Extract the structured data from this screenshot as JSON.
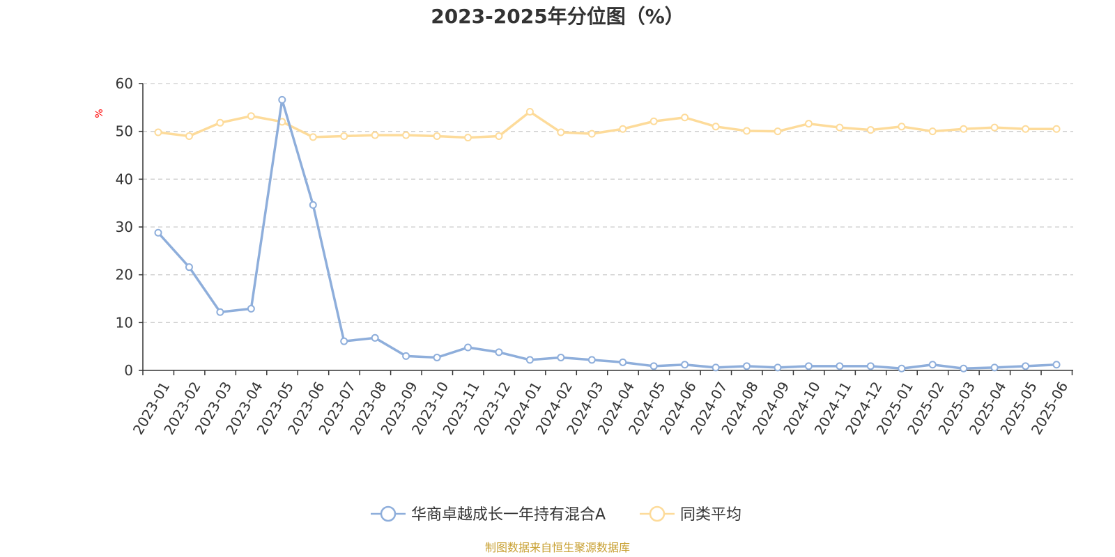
{
  "chart_data": {
    "type": "line",
    "title": "2023-2025年分位图（%）",
    "ylabel": "%",
    "xlabel": "",
    "ylim": [
      0,
      60
    ],
    "yticks": [
      0,
      10,
      20,
      30,
      40,
      50,
      60
    ],
    "grid": true,
    "legend_position": "bottom-center",
    "categories": [
      "2023-01",
      "2023-02",
      "2023-03",
      "2023-04",
      "2023-05",
      "2023-06",
      "2023-07",
      "2023-08",
      "2023-09",
      "2023-10",
      "2023-11",
      "2023-12",
      "2024-01",
      "2024-02",
      "2024-03",
      "2024-04",
      "2024-05",
      "2024-06",
      "2024-07",
      "2024-08",
      "2024-09",
      "2024-10",
      "2024-11",
      "2024-12",
      "2025-01",
      "2025-02",
      "2025-03",
      "2025-04",
      "2025-05",
      "2025-06"
    ],
    "series": [
      {
        "name": "华商卓越成长一年持有混合A",
        "color": "#8eaedb",
        "values": [
          28.8,
          21.6,
          12.2,
          12.9,
          56.6,
          34.6,
          6.1,
          6.8,
          3.0,
          2.7,
          4.8,
          3.8,
          2.2,
          2.7,
          2.2,
          1.7,
          0.9,
          1.2,
          0.6,
          0.9,
          0.6,
          0.9,
          0.9,
          0.9,
          0.4,
          1.2,
          0.4,
          0.6,
          0.9,
          1.2
        ]
      },
      {
        "name": "同类平均",
        "color": "#fddb9a",
        "values": [
          49.8,
          49.0,
          51.8,
          53.2,
          52.0,
          48.8,
          49.0,
          49.2,
          49.2,
          49.0,
          48.7,
          49.0,
          54.1,
          49.8,
          49.5,
          50.5,
          52.1,
          52.9,
          51.0,
          50.1,
          50.0,
          51.6,
          50.8,
          50.3,
          51.0,
          50.0,
          50.5,
          50.8,
          50.5,
          50.5
        ]
      }
    ]
  },
  "footer": {
    "source": "制图数据来自恒生聚源数据库",
    "source_color": "#c8a032"
  },
  "colors": {
    "axis": "#333333",
    "grid": "#cccccc",
    "unit_label": "#ff0000"
  }
}
